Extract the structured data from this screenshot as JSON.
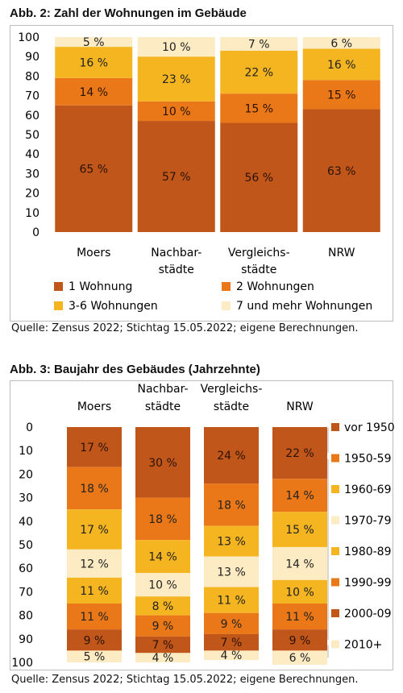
{
  "chart_data": [
    {
      "type": "bar",
      "stacked": true,
      "title": "Abb. 2:  Zahl der Wohnungen im Gebäude",
      "categories": [
        [
          "Moers"
        ],
        [
          "Nachbar-",
          "städte"
        ],
        [
          "Vergleichs-",
          "städte"
        ],
        [
          "NRW"
        ]
      ],
      "series": [
        {
          "name": "1 Wohnung",
          "values": [
            65,
            57,
            56,
            63
          ],
          "color": "#c0561a"
        },
        {
          "name": "2 Wohnungen",
          "values": [
            14,
            10,
            15,
            15
          ],
          "color": "#ea7818"
        },
        {
          "name": "3-6 Wohnungen",
          "values": [
            16,
            23,
            22,
            16
          ],
          "color": "#f4b521"
        },
        {
          "name": "7 und mehr Wohnungen",
          "values": [
            5,
            10,
            7,
            6
          ],
          "color": "#fcebc3"
        }
      ],
      "value_suffix": " %",
      "ylim": [
        0,
        100
      ],
      "yticks": [
        "0",
        "10",
        "20",
        "30",
        "40",
        "50",
        "60",
        "70",
        "80",
        "90",
        "100"
      ],
      "grid": false,
      "legend_position": "bottom",
      "source": "Quelle: Zensus 2022; Stichtag 15.05.2022; eigene Berechnungen."
    },
    {
      "type": "bar",
      "stacked": true,
      "orientation": "top-down",
      "title": "Abb. 3:  Baujahr des Gebäudes (Jahrzehnte)",
      "categories": [
        [
          "Moers"
        ],
        [
          "Nachbar-",
          "städte"
        ],
        [
          "Vergleichs-",
          "städte"
        ],
        [
          "NRW"
        ]
      ],
      "series": [
        {
          "name": "vor 1950",
          "values": [
            17,
            30,
            24,
            22
          ],
          "color": "#c0561a"
        },
        {
          "name": "1950-59",
          "values": [
            18,
            18,
            18,
            14
          ],
          "color": "#ea7818"
        },
        {
          "name": "1960-69",
          "values": [
            17,
            14,
            13,
            15
          ],
          "color": "#f4b521"
        },
        {
          "name": "1970-79",
          "values": [
            12,
            10,
            13,
            14
          ],
          "color": "#fcebc3"
        },
        {
          "name": "1980-89",
          "values": [
            11,
            8,
            11,
            10
          ],
          "color": "#f4b521"
        },
        {
          "name": "1990-99",
          "values": [
            11,
            9,
            9,
            11
          ],
          "color": "#ea7818"
        },
        {
          "name": "2000-09",
          "values": [
            9,
            7,
            7,
            9
          ],
          "color": "#c0561a"
        },
        {
          "name": "2010+",
          "values": [
            5,
            4,
            4,
            6
          ],
          "color": "#fcebc3"
        }
      ],
      "value_suffix": " %",
      "ylim": [
        0,
        100
      ],
      "yticks": [
        "0",
        "10",
        "20",
        "30",
        "40",
        "50",
        "60",
        "70",
        "80",
        "90",
        "100"
      ],
      "grid": false,
      "legend_position": "right",
      "source": "Quelle: Zensus 2022; Stichtag 15.05.2022; eigene Berechnungen."
    }
  ]
}
